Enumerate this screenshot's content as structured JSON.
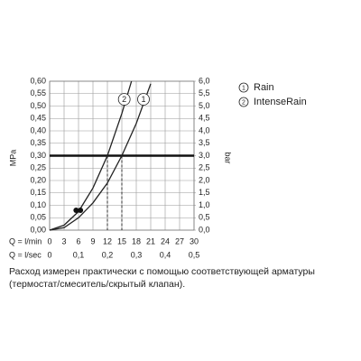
{
  "chart_data": {
    "type": "line",
    "ylabel": "MPa",
    "y2label": "bar",
    "x_row_labels": [
      "Q = l/min",
      "Q = l/sec"
    ],
    "xlim": [
      0,
      30
    ],
    "xticks": [
      0,
      3,
      6,
      9,
      12,
      15,
      18,
      21,
      24,
      27,
      30
    ],
    "x2lim": [
      0,
      0.5
    ],
    "x2ticks": [
      0,
      {
        "value": 0.1,
        "label": "0,1"
      },
      {
        "value": 0.2,
        "label": "0,2"
      },
      {
        "value": 0.3,
        "label": "0,3"
      },
      {
        "value": 0.4,
        "label": "0,4"
      },
      {
        "value": 0.5,
        "label": "0,5"
      }
    ],
    "ylim": [
      0,
      0.6
    ],
    "yticks": [
      {
        "value": 0,
        "label": "0,00"
      },
      {
        "value": 0.05,
        "label": "0,05"
      },
      {
        "value": 0.1,
        "label": "0,10"
      },
      {
        "value": 0.15,
        "label": "0,15"
      },
      {
        "value": 0.2,
        "label": "0,20"
      },
      {
        "value": 0.25,
        "label": "0,25"
      },
      {
        "value": 0.3,
        "label": "0,30"
      },
      {
        "value": 0.35,
        "label": "0,35"
      },
      {
        "value": 0.4,
        "label": "0,40"
      },
      {
        "value": 0.45,
        "label": "0,45"
      },
      {
        "value": 0.5,
        "label": "0,50"
      },
      {
        "value": 0.55,
        "label": "0,55"
      },
      {
        "value": 0.6,
        "label": "0,60"
      }
    ],
    "y2lim": [
      0,
      6
    ],
    "y2ticks": [
      {
        "value": 0,
        "label": "0,0"
      },
      {
        "value": 0.5,
        "label": "0,5"
      },
      {
        "value": 1,
        "label": "1,0"
      },
      {
        "value": 1.5,
        "label": "1,5"
      },
      {
        "value": 2,
        "label": "2,0"
      },
      {
        "value": 2.5,
        "label": "2,5"
      },
      {
        "value": 3,
        "label": "3,0"
      },
      {
        "value": 3.5,
        "label": "3,5"
      },
      {
        "value": 4,
        "label": "4,0"
      },
      {
        "value": 4.5,
        "label": "4,5"
      },
      {
        "value": 5,
        "label": "5,0"
      },
      {
        "value": 5.5,
        "label": "5,5"
      },
      {
        "value": 6,
        "label": "6,0"
      }
    ],
    "grid": true,
    "reference_y": 0.3,
    "reference_x": [
      12,
      15
    ],
    "markers": {
      "x": [
        5.5,
        6.4
      ],
      "y": [
        0.08,
        0.08
      ]
    },
    "series": [
      {
        "name": "Rain",
        "label": "1",
        "color": "#222222",
        "x": [
          0,
          3,
          6,
          9,
          12,
          15,
          18,
          21
        ],
        "values": [
          0,
          0.01,
          0.05,
          0.11,
          0.19,
          0.3,
          0.43,
          0.59
        ]
      },
      {
        "name": "IntenseRain",
        "label": "2",
        "color": "#222222",
        "x": [
          0,
          3,
          6,
          9,
          12,
          15,
          17
        ],
        "values": [
          0,
          0.02,
          0.075,
          0.17,
          0.3,
          0.47,
          0.6
        ]
      }
    ],
    "note": "Расход измерен практически с помощью соответствующей арматуры (термостат/смеситель/скрытый клапан)."
  }
}
